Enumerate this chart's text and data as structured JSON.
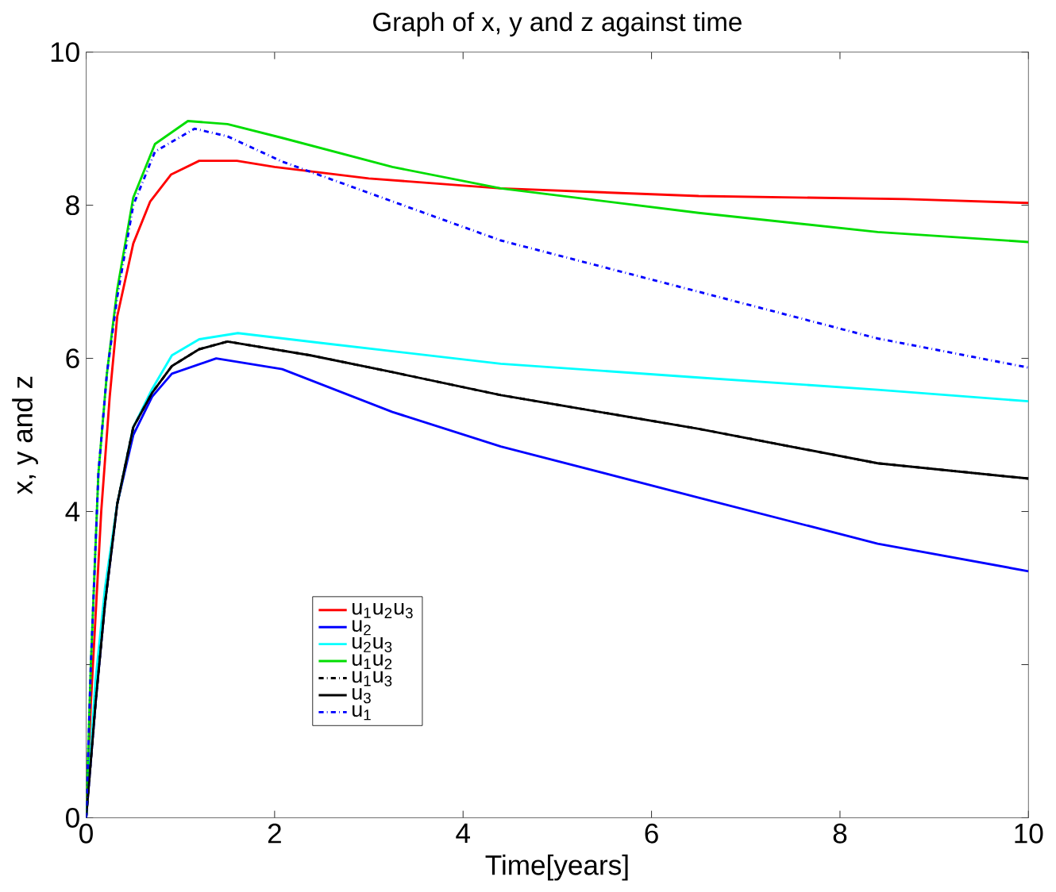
{
  "chart_data": {
    "type": "line",
    "title": "Graph of x, y and z against time",
    "xlabel": "Time[years]",
    "ylabel": "x, y and z",
    "xlim": [
      0,
      10
    ],
    "ylim": [
      0,
      10
    ],
    "xticks": [
      0,
      2,
      4,
      6,
      8,
      10
    ],
    "yticks": [
      0,
      {
        "value": 2,
        "label": null
      },
      4,
      6,
      8,
      10
    ],
    "grid": false,
    "legend": "bottom left",
    "marker": "none",
    "series": [
      {
        "name": "u$_{1}$u$_{2}$u$_{3}$",
        "color": "#ff0000",
        "line_style": "solid",
        "x": [
          0,
          0.05,
          0.16,
          0.25,
          0.33,
          0.5,
          0.68,
          0.9,
          1.2,
          1.6,
          2,
          3,
          4.4,
          6.5,
          8.7,
          10
        ],
        "values": [
          0,
          1.5,
          4.0,
          5.5,
          6.55,
          7.5,
          8.05,
          8.4,
          8.58,
          8.58,
          8.5,
          8.35,
          8.22,
          8.12,
          8.08,
          8.03
        ]
      },
      {
        "name": "u$_{2}$",
        "color": "#0000ff",
        "line_style": "solid",
        "x": [
          0,
          0.1,
          0.2,
          0.33,
          0.5,
          0.7,
          0.91,
          1.38,
          2.08,
          3.25,
          4.4,
          6.5,
          8.4,
          10
        ],
        "values": [
          0,
          1.5,
          2.8,
          4.1,
          5.0,
          5.5,
          5.8,
          6.0,
          5.86,
          5.3,
          4.85,
          4.18,
          3.58,
          3.22
        ]
      },
      {
        "name": "u$_{2}$u$_{3}$",
        "color": "#00ffff",
        "line_style": "solid",
        "x": [
          0,
          0.1,
          0.2,
          0.33,
          0.5,
          0.7,
          0.91,
          1.2,
          1.61,
          2.5,
          4.4,
          6.5,
          8.4,
          10
        ],
        "values": [
          0,
          1.8,
          3.0,
          4.1,
          5.1,
          5.6,
          6.04,
          6.25,
          6.33,
          6.2,
          5.93,
          5.75,
          5.59,
          5.44
        ]
      },
      {
        "name": "u$_{1}$u$_{2}$",
        "color": "#00dd00",
        "line_style": "solid",
        "x": [
          0,
          0.05,
          0.13,
          0.22,
          0.33,
          0.5,
          0.73,
          1.08,
          1.5,
          2.08,
          3.25,
          4.4,
          6.5,
          8.4,
          10
        ],
        "values": [
          0,
          2,
          4.5,
          5.8,
          6.9,
          8.1,
          8.8,
          9.1,
          9.06,
          8.88,
          8.5,
          8.22,
          7.9,
          7.65,
          7.52
        ]
      },
      {
        "name": "u$_{1}$u$_{3}$",
        "color": "#000000",
        "line_style": "dashdot",
        "x": [
          0,
          0.1,
          0.2,
          0.33,
          0.5,
          0.7,
          0.91,
          1.2,
          1.5,
          2.38,
          3.25,
          4.4,
          6.5,
          8.4,
          10
        ],
        "values": [
          0,
          1.5,
          2.8,
          4.1,
          5.1,
          5.55,
          5.9,
          6.12,
          6.22,
          6.04,
          5.82,
          5.52,
          5.08,
          4.63,
          4.43
        ]
      },
      {
        "name": "u$_{3}$",
        "color": "#000000",
        "line_style": "solid",
        "x": [
          0,
          0.1,
          0.2,
          0.33,
          0.5,
          0.7,
          0.91,
          1.2,
          1.5,
          2.38,
          3.25,
          4.4,
          6.5,
          8.4,
          10
        ],
        "values": [
          0,
          1.5,
          2.8,
          4.1,
          5.1,
          5.55,
          5.9,
          6.12,
          6.22,
          6.04,
          5.82,
          5.52,
          5.08,
          4.63,
          4.43
        ]
      },
      {
        "name": "u$_{1}$",
        "color": "#0000ff",
        "line_style": "dashdot",
        "x": [
          0,
          0.05,
          0.13,
          0.22,
          0.33,
          0.5,
          0.73,
          1.15,
          1.5,
          2.08,
          3.25,
          4.4,
          6.5,
          8.4,
          10
        ],
        "values": [
          0,
          2,
          4.5,
          5.8,
          6.8,
          8.0,
          8.7,
          9.0,
          8.9,
          8.57,
          8.05,
          7.54,
          6.87,
          6.26,
          5.88
        ]
      }
    ]
  }
}
